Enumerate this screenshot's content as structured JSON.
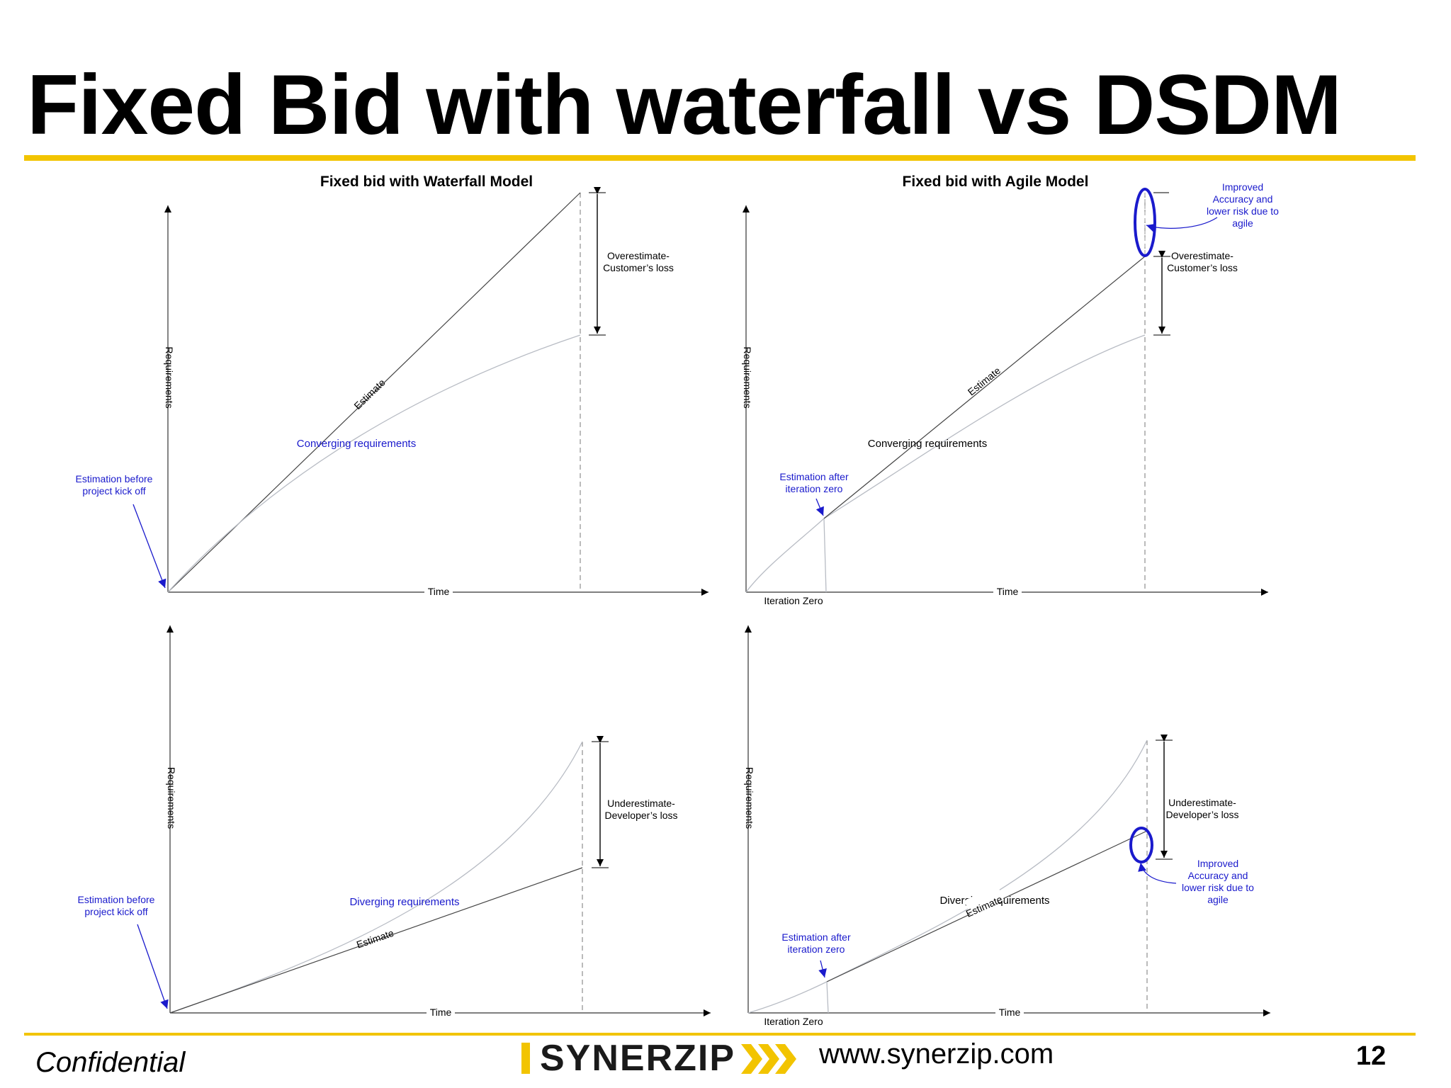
{
  "slide": {
    "title": "Fixed Bid with waterfall vs DSDM",
    "footer_left": "Confidential",
    "logo_text": "SYNERZIP",
    "url": "www.synerzip.com",
    "page_number": "12"
  },
  "colors": {
    "accent_yellow": "#f2c400",
    "annotation_blue": "#1a1acc",
    "axis": "#333333",
    "curve": "#b8bcc4"
  },
  "diagram": {
    "waterfall_title": "Fixed bid with Waterfall Model",
    "agile_title": "Fixed bid with Agile Model",
    "quadrants": {
      "waterfall_top": {
        "y_axis": "Requirements",
        "x_axis": "Time",
        "estimate": "Estimate",
        "requirements": "Converging requirements",
        "callout": [
          "Estimation before",
          "project kick off"
        ],
        "gap": [
          "Overestimate-",
          "Customer’s loss"
        ]
      },
      "agile_top": {
        "y_axis": "Requirements",
        "x_axis": "Time",
        "estimate": "Estimate",
        "requirements": "Converging requirements",
        "callout": [
          "Estimation after",
          "iteration zero"
        ],
        "iteration": "Iteration Zero",
        "gap": [
          "Overestimate-",
          "Customer’s loss"
        ],
        "improved": [
          "Improved",
          "Accuracy and",
          "lower risk due to",
          "agile"
        ]
      },
      "waterfall_bottom": {
        "y_axis": "Requirements",
        "x_axis": "Time",
        "estimate": "Estimate",
        "requirements": "Diverging requirements",
        "callout": [
          "Estimation before",
          "project kick off"
        ],
        "gap": [
          "Underestimate-",
          "Developer’s loss"
        ]
      },
      "agile_bottom": {
        "y_axis": "Requirements",
        "x_axis": "Time",
        "estimate": "Estimate",
        "requirements": "Diverging requirements",
        "callout": [
          "Estimation after",
          "iteration zero"
        ],
        "iteration": "Iteration Zero",
        "gap": [
          "Underestimate-",
          "Developer’s loss"
        ],
        "improved": [
          "Improved",
          "Accuracy and",
          "lower risk due to",
          "agile"
        ]
      }
    }
  }
}
